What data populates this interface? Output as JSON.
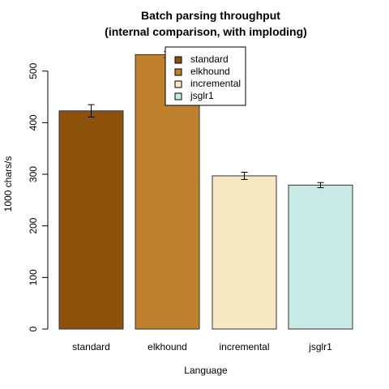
{
  "chart_data": {
    "type": "bar",
    "title": "Batch parsing throughput",
    "subtitle": "(internal comparison, with imploding)",
    "xlabel": "Language",
    "ylabel": "1000 chars/s",
    "ylim": [
      0,
      540
    ],
    "yticks": [
      "0",
      "100",
      "200",
      "300",
      "400",
      "500"
    ],
    "grid": false,
    "legend_position": "top-right",
    "categories": [
      "standard",
      "elkhound",
      "incremental",
      "jsglr1"
    ],
    "values": [
      423,
      532,
      297,
      279
    ],
    "errors": [
      12,
      6,
      7,
      5
    ],
    "colors": [
      "#8c510a",
      "#bf812d",
      "#f6e8c3",
      "#c7eae5"
    ],
    "legend": [
      "standard",
      "elkhound",
      "incremental",
      "jsglr1"
    ]
  }
}
